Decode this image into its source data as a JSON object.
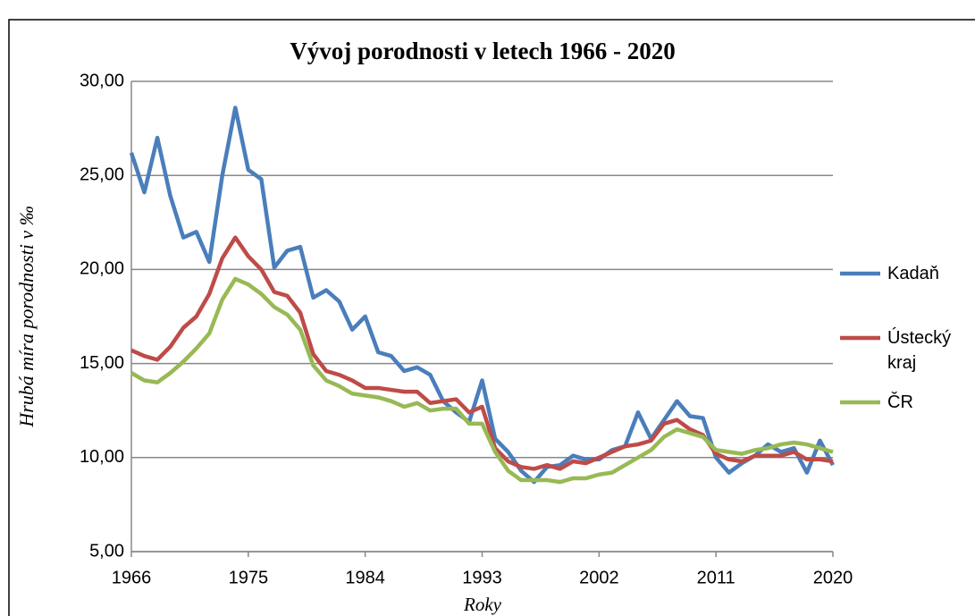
{
  "chart_data": {
    "type": "line",
    "title": "Vývoj porodnosti v letech 1966 - 2020",
    "x_label": "Roky",
    "y_label": "Hrubá míra porodnosti v ‰",
    "x": [
      1966,
      1967,
      1968,
      1969,
      1970,
      1971,
      1972,
      1973,
      1974,
      1975,
      1976,
      1977,
      1978,
      1979,
      1980,
      1981,
      1982,
      1983,
      1984,
      1985,
      1986,
      1987,
      1988,
      1989,
      1990,
      1991,
      1992,
      1993,
      1994,
      1995,
      1996,
      1997,
      1998,
      1999,
      2000,
      2001,
      2002,
      2003,
      2004,
      2005,
      2006,
      2007,
      2008,
      2009,
      2010,
      2011,
      2012,
      2013,
      2014,
      2015,
      2016,
      2017,
      2018,
      2019,
      2020
    ],
    "series": [
      {
        "name": "Kadaň",
        "color": "#4a7ebb",
        "values": [
          26.2,
          24.1,
          27.0,
          23.9,
          21.7,
          22.0,
          20.4,
          25.0,
          28.6,
          25.3,
          24.8,
          20.1,
          21.0,
          21.2,
          18.5,
          18.9,
          18.3,
          16.8,
          17.5,
          15.6,
          15.4,
          14.6,
          14.8,
          14.4,
          13.0,
          12.4,
          11.9,
          14.1,
          11.0,
          10.3,
          9.3,
          8.7,
          9.5,
          9.6,
          10.1,
          9.9,
          9.9,
          10.4,
          10.6,
          12.4,
          11.0,
          12.0,
          13.0,
          12.2,
          12.1,
          10.0,
          9.2,
          9.7,
          10.1,
          10.7,
          10.3,
          10.5,
          9.2,
          10.9,
          9.6
        ]
      },
      {
        "name": "Ústecký kraj",
        "color": "#be4b48",
        "values": [
          15.7,
          15.4,
          15.2,
          15.9,
          16.9,
          17.5,
          18.7,
          20.6,
          21.7,
          20.7,
          20.0,
          18.8,
          18.6,
          17.7,
          15.5,
          14.6,
          14.4,
          14.1,
          13.7,
          13.7,
          13.6,
          13.5,
          13.5,
          12.9,
          13.0,
          13.1,
          12.4,
          12.7,
          10.5,
          9.8,
          9.5,
          9.4,
          9.6,
          9.4,
          9.8,
          9.7,
          10.0,
          10.3,
          10.6,
          10.7,
          10.9,
          11.8,
          12.0,
          11.5,
          11.2,
          10.2,
          9.9,
          9.8,
          10.1,
          10.1,
          10.1,
          10.3,
          9.9,
          9.9,
          9.8
        ]
      },
      {
        "name": "ČR",
        "color": "#98b954",
        "values": [
          14.5,
          14.1,
          14.0,
          14.5,
          15.1,
          15.8,
          16.6,
          18.4,
          19.5,
          19.2,
          18.7,
          18.0,
          17.6,
          16.8,
          14.9,
          14.1,
          13.8,
          13.4,
          13.3,
          13.2,
          13.0,
          12.7,
          12.9,
          12.5,
          12.6,
          12.6,
          11.8,
          11.8,
          10.3,
          9.3,
          8.8,
          8.8,
          8.8,
          8.7,
          8.9,
          8.9,
          9.1,
          9.2,
          9.6,
          10.0,
          10.4,
          11.1,
          11.5,
          11.3,
          11.1,
          10.4,
          10.3,
          10.2,
          10.4,
          10.5,
          10.7,
          10.8,
          10.7,
          10.5,
          10.3
        ]
      }
    ],
    "xlim": [
      1966,
      2020
    ],
    "xticks": [
      1966,
      1975,
      1984,
      1993,
      2002,
      2011,
      2020
    ],
    "ylim": [
      5,
      30
    ],
    "yticks": [
      {
        "value": 5,
        "label": "5,00"
      },
      {
        "value": 10,
        "label": "10,00"
      },
      {
        "value": 15,
        "label": "15,00"
      },
      {
        "value": 20,
        "label": "20,00"
      },
      {
        "value": 25,
        "label": "25,00"
      },
      {
        "value": 30,
        "label": "30,00"
      }
    ],
    "grid": true,
    "legend": "right"
  }
}
